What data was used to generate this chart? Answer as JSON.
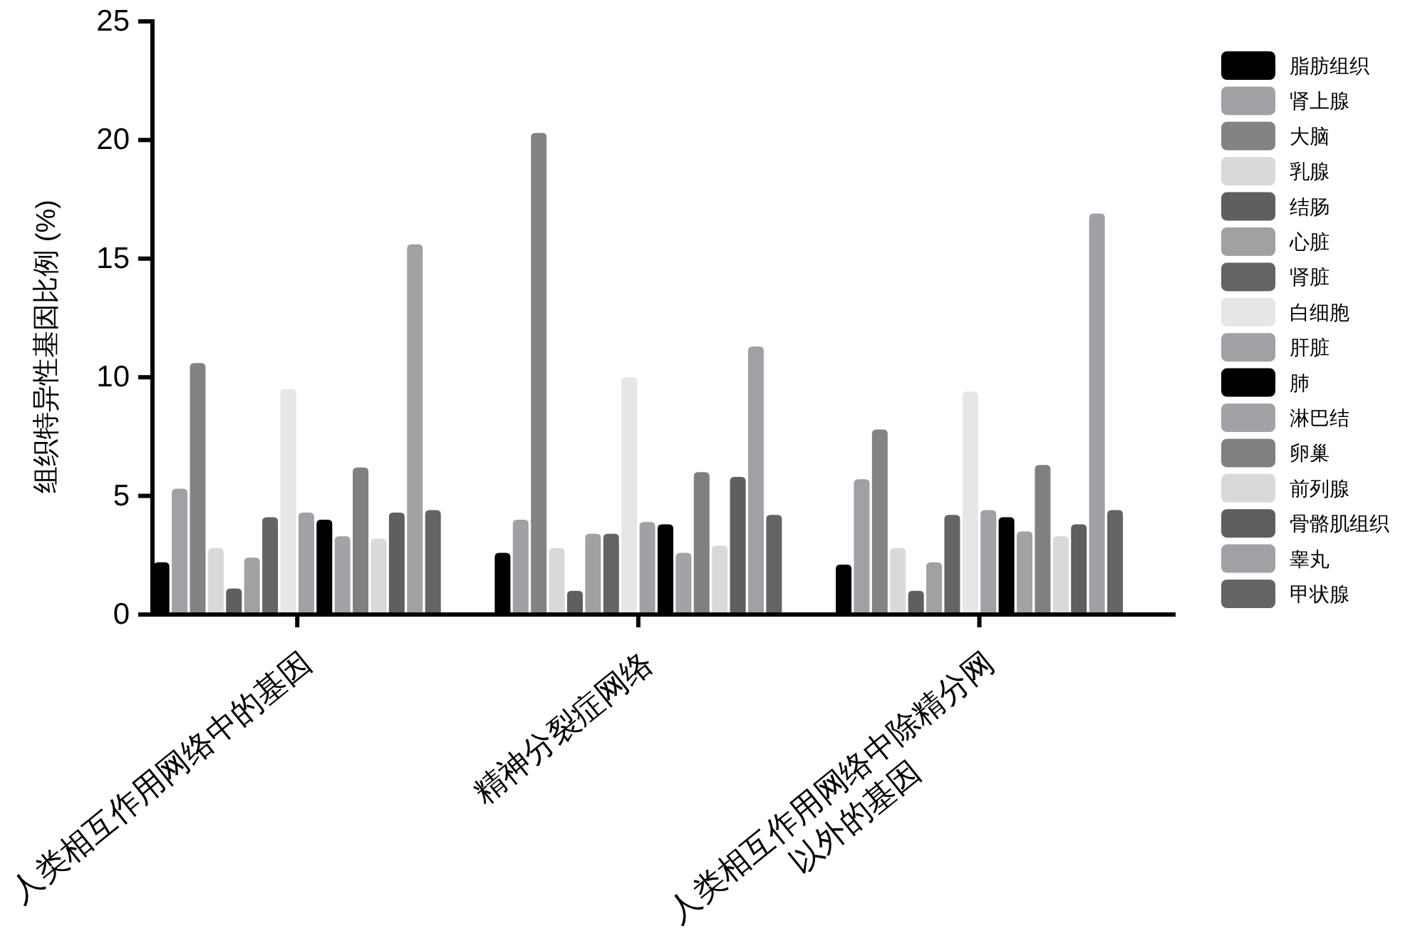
{
  "chart_data": {
    "type": "bar",
    "ylabel": "组织特异性基因比例 (%)",
    "categories": [
      "人类相互作用网络中的基因",
      "精神分裂症网络",
      "人类相互作用网络中除精分网\n以外的基因"
    ],
    "ylim": [
      0,
      25
    ],
    "yticks": [
      0,
      5,
      10,
      15,
      20,
      25
    ],
    "legend": "right",
    "series": [
      {
        "name": "脂肪组织",
        "color": "#000000",
        "values": [
          2.2,
          2.6,
          2.1
        ]
      },
      {
        "name": "肾上腺",
        "color": "#a1a1a5",
        "values": [
          5.3,
          4.0,
          5.7
        ]
      },
      {
        "name": "大脑",
        "color": "#838383",
        "values": [
          10.6,
          20.3,
          7.8
        ]
      },
      {
        "name": "乳腺",
        "color": "#d9d9d9",
        "values": [
          2.8,
          2.8,
          2.8
        ]
      },
      {
        "name": "结肠",
        "color": "#5f5f5f",
        "values": [
          1.1,
          1.0,
          1.0
        ]
      },
      {
        "name": "心脏",
        "color": "#a1a1a1",
        "values": [
          2.4,
          3.4,
          2.2
        ]
      },
      {
        "name": "肾脏",
        "color": "#646464",
        "values": [
          4.1,
          3.4,
          4.2
        ]
      },
      {
        "name": "白细胞",
        "color": "#e6e6e6",
        "values": [
          9.5,
          10.0,
          9.4
        ]
      },
      {
        "name": "肝脏",
        "color": "#a1a1a5",
        "values": [
          4.3,
          3.9,
          4.4
        ]
      },
      {
        "name": "肺",
        "color": "#000000",
        "values": [
          4.0,
          3.8,
          4.1
        ]
      },
      {
        "name": "淋巴结",
        "color": "#a3a3a7",
        "values": [
          3.3,
          2.6,
          3.5
        ]
      },
      {
        "name": "卵巢",
        "color": "#808080",
        "values": [
          6.2,
          6.0,
          6.3
        ]
      },
      {
        "name": "前列腺",
        "color": "#d9d9d9",
        "values": [
          3.2,
          2.9,
          3.3
        ]
      },
      {
        "name": "骨骼肌组织",
        "color": "#5f5f5f",
        "values": [
          4.3,
          5.8,
          3.8
        ]
      },
      {
        "name": "睾丸",
        "color": "#a1a1a5",
        "values": [
          15.6,
          11.3,
          16.9
        ]
      },
      {
        "name": "甲状腺",
        "color": "#646464",
        "values": [
          4.4,
          4.2,
          4.4
        ]
      }
    ]
  }
}
